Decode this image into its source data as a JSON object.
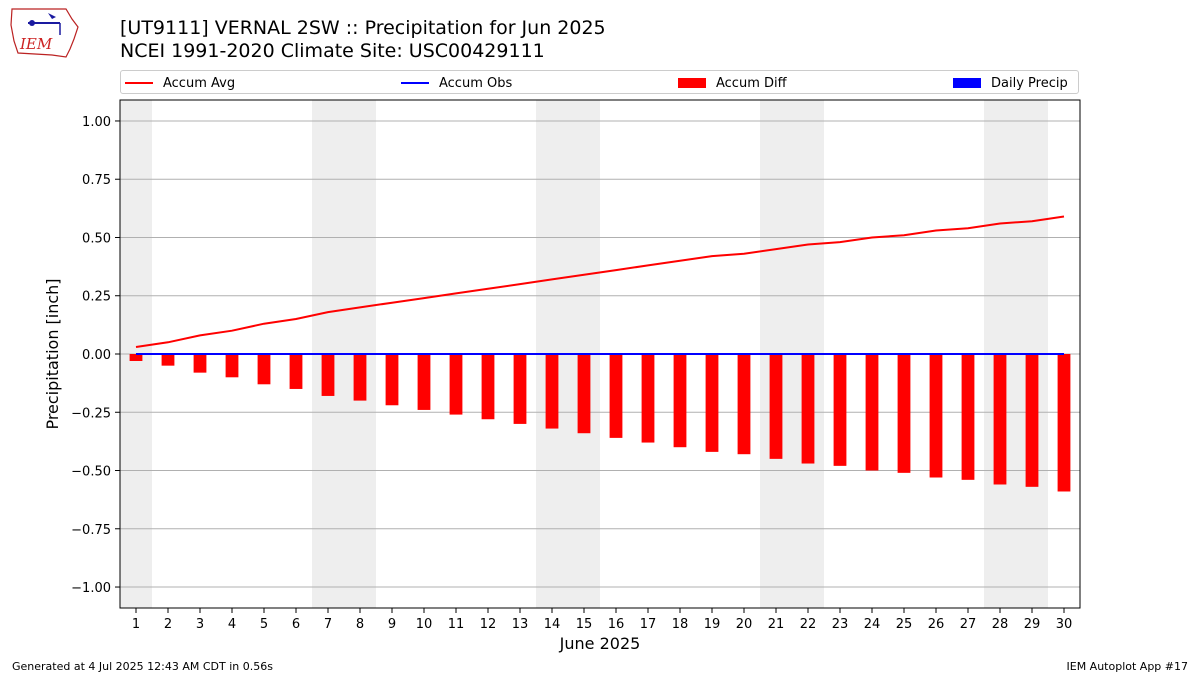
{
  "header": {
    "title_line1": "[UT9111] VERNAL 2SW :: Precipitation for Jun 2025",
    "title_line2": "NCEI 1991-2020 Climate Site: USC00429111",
    "logo_text": "IEM"
  },
  "legend": [
    {
      "label": "Accum Avg",
      "kind": "line",
      "color": "#ff0000"
    },
    {
      "label": "Accum Obs",
      "kind": "line",
      "color": "#0000ff"
    },
    {
      "label": "Accum Diff",
      "kind": "box",
      "color": "#ff0000"
    },
    {
      "label": "Daily Precip",
      "kind": "box",
      "color": "#0000ff"
    }
  ],
  "footer": {
    "left": "Generated at 4 Jul 2025 12:43 AM CDT in 0.56s",
    "right": "IEM Autoplot App #17"
  },
  "chart_data": {
    "type": "bar",
    "xlabel": "June 2025",
    "ylabel": "Precipitation [inch]",
    "ylim": [
      -1.09,
      1.09
    ],
    "yticks": [
      -1.0,
      -0.75,
      -0.5,
      -0.25,
      0.0,
      0.25,
      0.5,
      0.75,
      1.0
    ],
    "ytick_labels": [
      "−1.00",
      "−0.75",
      "−0.50",
      "−0.25",
      "0.00",
      "0.25",
      "0.50",
      "0.75",
      "1.00"
    ],
    "grid": true,
    "weekend_shading_days": [
      1,
      7,
      8,
      14,
      15,
      21,
      22,
      28,
      29
    ],
    "weekend_shade_color": "#eeeeee",
    "x": [
      1,
      2,
      3,
      4,
      5,
      6,
      7,
      8,
      9,
      10,
      11,
      12,
      13,
      14,
      15,
      16,
      17,
      18,
      19,
      20,
      21,
      22,
      23,
      24,
      25,
      26,
      27,
      28,
      29,
      30
    ],
    "series": [
      {
        "name": "Accum Avg",
        "kind": "line",
        "color": "#ff0000",
        "values": [
          0.03,
          0.05,
          0.08,
          0.1,
          0.13,
          0.15,
          0.18,
          0.2,
          0.22,
          0.24,
          0.26,
          0.28,
          0.3,
          0.32,
          0.34,
          0.36,
          0.38,
          0.4,
          0.42,
          0.43,
          0.45,
          0.47,
          0.48,
          0.5,
          0.51,
          0.53,
          0.54,
          0.56,
          0.57,
          0.59
        ]
      },
      {
        "name": "Accum Obs",
        "kind": "line",
        "color": "#0000ff",
        "values": [
          0,
          0,
          0,
          0,
          0,
          0,
          0,
          0,
          0,
          0,
          0,
          0,
          0,
          0,
          0,
          0,
          0,
          0,
          0,
          0,
          0,
          0,
          0,
          0,
          0,
          0,
          0,
          0,
          0,
          0
        ]
      },
      {
        "name": "Accum Diff",
        "kind": "bar",
        "color": "#ff0000",
        "values": [
          -0.03,
          -0.05,
          -0.08,
          -0.1,
          -0.13,
          -0.15,
          -0.18,
          -0.2,
          -0.22,
          -0.24,
          -0.26,
          -0.28,
          -0.3,
          -0.32,
          -0.34,
          -0.36,
          -0.38,
          -0.4,
          -0.42,
          -0.43,
          -0.45,
          -0.47,
          -0.48,
          -0.5,
          -0.51,
          -0.53,
          -0.54,
          -0.56,
          -0.57,
          -0.59
        ]
      },
      {
        "name": "Daily Precip",
        "kind": "bar",
        "color": "#0000ff",
        "values": [
          0,
          0,
          0,
          0,
          0,
          0,
          0,
          0,
          0,
          0,
          0,
          0,
          0,
          0,
          0,
          0,
          0,
          0,
          0,
          0,
          0,
          0,
          0,
          0,
          0,
          0,
          0,
          0,
          0,
          0
        ]
      }
    ]
  }
}
